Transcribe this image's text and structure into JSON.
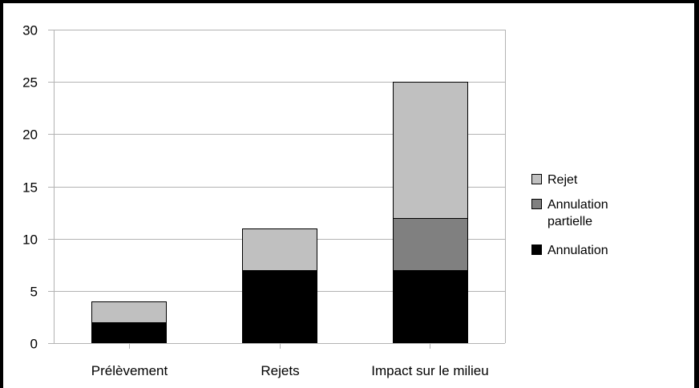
{
  "chart_data": {
    "type": "bar",
    "stacked": true,
    "categories": [
      "Prélèvement",
      "Rejets",
      "Impact sur le milieu"
    ],
    "series": [
      {
        "name": "Annulation",
        "values": [
          2,
          7,
          7
        ],
        "color": "#000000"
      },
      {
        "name": "Annulation partielle",
        "values": [
          0,
          0,
          5
        ],
        "color": "#808080"
      },
      {
        "name": "Rejet",
        "values": [
          2,
          4,
          13
        ],
        "color": "#c0c0c0"
      }
    ],
    "legend_order": [
      "Rejet",
      "Annulation partielle",
      "Annulation"
    ],
    "legend_lines": {
      "Rejet": [
        "Rejet"
      ],
      "Annulation partielle": [
        "Annulation",
        "partielle"
      ],
      "Annulation": [
        "Annulation"
      ]
    },
    "ylim": [
      0,
      30
    ],
    "yticks": [
      0,
      5,
      10,
      15,
      20,
      25,
      30
    ],
    "grid": true,
    "legend_position": "right",
    "title": "",
    "xlabel": "",
    "ylabel": ""
  }
}
